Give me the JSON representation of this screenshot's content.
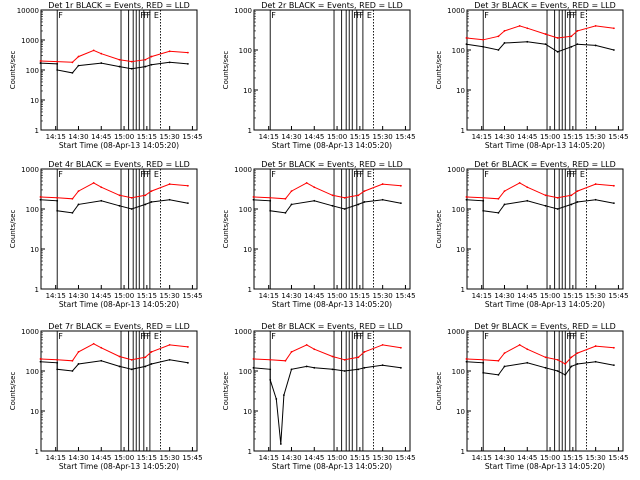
{
  "figure": {
    "background": "#ffffff",
    "axis_color": "#000000",
    "events_color": "#000000",
    "lld_color": "#ff0000"
  },
  "chart_data": [
    {
      "type": "line",
      "title": "Det 1r BLACK = Events, RED = LLD",
      "xlabel": "Start Time (08-Apr-13 14:05:20)",
      "ylabel": "Counts/sec",
      "x_ticks": [
        "14:15",
        "14:30",
        "14:45",
        "15:00",
        "15:15",
        "15:30",
        "15:45"
      ],
      "y_ticks": [
        "1",
        "10",
        "100",
        "1000",
        "10000"
      ],
      "ylim": [
        1,
        10000
      ],
      "y_scale": "log",
      "annotations": [
        "F",
        "F",
        "F",
        "F",
        "E"
      ],
      "series": [
        {
          "name": "BLACK = Events",
          "x": [
            "14:05",
            "14:16",
            "14:16",
            "14:26",
            "14:30",
            "14:45",
            "14:57",
            "15:05",
            "15:14",
            "15:18",
            "15:30",
            "15:42"
          ],
          "y": [
            170,
            160,
            100,
            80,
            140,
            170,
            130,
            110,
            130,
            150,
            180,
            160
          ]
        },
        {
          "name": "RED = LLD",
          "x": [
            "14:05",
            "14:16",
            "14:26",
            "14:30",
            "14:40",
            "14:45",
            "14:57",
            "15:05",
            "15:14",
            "15:18",
            "15:30",
            "15:42"
          ],
          "y": [
            200,
            190,
            180,
            280,
            450,
            350,
            220,
            190,
            220,
            280,
            420,
            380
          ]
        }
      ]
    },
    {
      "type": "line",
      "title": "Det 2r BLACK = Events, RED = LLD",
      "xlabel": "Start Time (08-Apr-13 14:05:20)",
      "ylabel": "Counts/sec",
      "x_ticks": [
        "14:15",
        "14:30",
        "14:45",
        "15:00",
        "15:15",
        "15:30",
        "15:45"
      ],
      "y_ticks": [
        "1",
        "10",
        "100",
        "1000"
      ],
      "ylim": [
        1,
        1000
      ],
      "y_scale": "log",
      "annotations": [
        "F",
        "F",
        "F",
        "F",
        "E"
      ],
      "series": []
    },
    {
      "type": "line",
      "title": "Det 3r BLACK = Events, RED = LLD",
      "xlabel": "Start Time (08-Apr-13 14:05:20)",
      "ylabel": "Counts/sec",
      "x_ticks": [
        "14:15",
        "14:30",
        "14:45",
        "15:00",
        "15:15",
        "15:30",
        "15:45"
      ],
      "y_ticks": [
        "1",
        "10",
        "100",
        "1000"
      ],
      "ylim": [
        1,
        1000
      ],
      "y_scale": "log",
      "annotations": [
        "F",
        "F",
        "F",
        "F",
        "E"
      ],
      "series": [
        {
          "name": "BLACK = Events",
          "x": [
            "14:05",
            "14:16",
            "14:26",
            "14:30",
            "14:45",
            "14:57",
            "15:05",
            "15:14",
            "15:18",
            "15:30",
            "15:42"
          ],
          "y": [
            140,
            120,
            100,
            150,
            160,
            140,
            90,
            120,
            140,
            130,
            100
          ]
        },
        {
          "name": "RED = LLD",
          "x": [
            "14:05",
            "14:16",
            "14:26",
            "14:30",
            "14:40",
            "14:45",
            "14:57",
            "15:05",
            "15:14",
            "15:18",
            "15:30",
            "15:42"
          ],
          "y": [
            200,
            180,
            220,
            300,
            400,
            350,
            250,
            200,
            220,
            300,
            400,
            350
          ]
        }
      ]
    },
    {
      "type": "line",
      "title": "Det 4r BLACK = Events, RED = LLD",
      "xlabel": "Start Time (08-Apr-13 14:05:20)",
      "ylabel": "Counts/sec",
      "x_ticks": [
        "14:15",
        "14:30",
        "14:45",
        "15:00",
        "15:15",
        "15:30",
        "15:45"
      ],
      "y_ticks": [
        "1",
        "10",
        "100",
        "1000"
      ],
      "ylim": [
        1,
        1000
      ],
      "y_scale": "log",
      "annotations": [
        "F",
        "F",
        "F",
        "F",
        "E"
      ],
      "series": [
        {
          "name": "BLACK = Events",
          "x": [
            "14:05",
            "14:16",
            "14:16",
            "14:26",
            "14:30",
            "14:45",
            "14:57",
            "15:05",
            "15:14",
            "15:18",
            "15:30",
            "15:42"
          ],
          "y": [
            170,
            160,
            90,
            80,
            130,
            160,
            120,
            100,
            130,
            150,
            170,
            140
          ]
        },
        {
          "name": "RED = LLD",
          "x": [
            "14:05",
            "14:16",
            "14:26",
            "14:30",
            "14:40",
            "14:45",
            "14:57",
            "15:05",
            "15:14",
            "15:18",
            "15:30",
            "15:42"
          ],
          "y": [
            200,
            190,
            180,
            280,
            450,
            350,
            220,
            190,
            220,
            280,
            420,
            380
          ]
        }
      ]
    },
    {
      "type": "line",
      "title": "Det 5r BLACK = Events, RED = LLD",
      "xlabel": "Start Time (08-Apr-13 14:05:20)",
      "ylabel": "Counts/sec",
      "x_ticks": [
        "14:15",
        "14:30",
        "14:45",
        "15:00",
        "15:15",
        "15:30",
        "15:45"
      ],
      "y_ticks": [
        "1",
        "10",
        "100",
        "1000"
      ],
      "ylim": [
        1,
        1000
      ],
      "y_scale": "log",
      "annotations": [
        "F",
        "F",
        "F",
        "F",
        "E"
      ],
      "series": [
        {
          "name": "BLACK = Events",
          "x": [
            "14:05",
            "14:16",
            "14:16",
            "14:26",
            "14:30",
            "14:45",
            "14:57",
            "15:05",
            "15:14",
            "15:18",
            "15:30",
            "15:42"
          ],
          "y": [
            170,
            160,
            90,
            80,
            130,
            160,
            120,
            100,
            130,
            150,
            170,
            140
          ]
        },
        {
          "name": "RED = LLD",
          "x": [
            "14:05",
            "14:16",
            "14:26",
            "14:30",
            "14:40",
            "14:45",
            "14:57",
            "15:05",
            "15:14",
            "15:18",
            "15:30",
            "15:42"
          ],
          "y": [
            200,
            190,
            180,
            280,
            450,
            350,
            220,
            190,
            220,
            280,
            420,
            380
          ]
        }
      ]
    },
    {
      "type": "line",
      "title": "Det 6r BLACK = Events, RED = LLD",
      "xlabel": "Start Time (08-Apr-13 14:05:20)",
      "ylabel": "Counts/sec",
      "x_ticks": [
        "14:15",
        "14:30",
        "14:45",
        "15:00",
        "15:15",
        "15:30",
        "15:45"
      ],
      "y_ticks": [
        "1",
        "10",
        "100",
        "1000"
      ],
      "ylim": [
        1,
        1000
      ],
      "y_scale": "log",
      "annotations": [
        "F",
        "F",
        "F",
        "F",
        "E"
      ],
      "series": [
        {
          "name": "BLACK = Events",
          "x": [
            "14:05",
            "14:16",
            "14:16",
            "14:26",
            "14:30",
            "14:45",
            "14:57",
            "15:05",
            "15:14",
            "15:18",
            "15:30",
            "15:42"
          ],
          "y": [
            170,
            160,
            90,
            80,
            130,
            160,
            120,
            100,
            130,
            150,
            170,
            140
          ]
        },
        {
          "name": "RED = LLD",
          "x": [
            "14:05",
            "14:16",
            "14:26",
            "14:30",
            "14:40",
            "14:45",
            "14:57",
            "15:05",
            "15:14",
            "15:18",
            "15:30",
            "15:42"
          ],
          "y": [
            200,
            190,
            180,
            280,
            450,
            350,
            220,
            190,
            220,
            280,
            420,
            380
          ]
        }
      ]
    },
    {
      "type": "line",
      "title": "Det 7r BLACK = Events, RED = LLD",
      "xlabel": "Start Time (08-Apr-13 14:05:20)",
      "ylabel": "Counts/sec",
      "x_ticks": [
        "14:15",
        "14:30",
        "14:45",
        "15:00",
        "15:15",
        "15:30",
        "15:45"
      ],
      "y_ticks": [
        "1",
        "10",
        "100",
        "1000"
      ],
      "ylim": [
        1,
        1000
      ],
      "y_scale": "log",
      "annotations": [
        "F",
        "F",
        "F",
        "F",
        "E"
      ],
      "series": [
        {
          "name": "BLACK = Events",
          "x": [
            "14:05",
            "14:16",
            "14:16",
            "14:26",
            "14:30",
            "14:45",
            "14:57",
            "15:05",
            "15:14",
            "15:18",
            "15:30",
            "15:42"
          ],
          "y": [
            170,
            160,
            110,
            100,
            150,
            180,
            130,
            110,
            130,
            150,
            190,
            160
          ]
        },
        {
          "name": "RED = LLD",
          "x": [
            "14:05",
            "14:16",
            "14:26",
            "14:30",
            "14:40",
            "14:45",
            "14:57",
            "15:05",
            "15:14",
            "15:18",
            "15:30",
            "15:42"
          ],
          "y": [
            200,
            190,
            180,
            300,
            480,
            380,
            230,
            190,
            220,
            300,
            450,
            400
          ]
        }
      ]
    },
    {
      "type": "line",
      "title": "Det 8r BLACK = Events, RED = LLD",
      "xlabel": "Start Time (08-Apr-13 14:05:20)",
      "ylabel": "Counts/sec",
      "x_ticks": [
        "14:15",
        "14:30",
        "14:45",
        "15:00",
        "15:15",
        "15:30",
        "15:45"
      ],
      "y_ticks": [
        "1",
        "10",
        "100",
        "1000"
      ],
      "ylim": [
        1,
        1000
      ],
      "y_scale": "log",
      "annotations": [
        "F",
        "F",
        "F",
        "F",
        "E"
      ],
      "series": [
        {
          "name": "BLACK = Events",
          "x": [
            "14:05",
            "14:16",
            "14:16",
            "14:20",
            "14:23",
            "14:25",
            "14:30",
            "14:40",
            "14:45",
            "14:57",
            "15:05",
            "15:14",
            "15:18",
            "15:30",
            "15:42"
          ],
          "y": [
            120,
            110,
            60,
            20,
            1.5,
            25,
            110,
            130,
            120,
            110,
            100,
            110,
            120,
            140,
            120
          ]
        },
        {
          "name": "RED = LLD",
          "x": [
            "14:05",
            "14:16",
            "14:26",
            "14:30",
            "14:40",
            "14:45",
            "14:57",
            "15:05",
            "15:14",
            "15:18",
            "15:30",
            "15:42"
          ],
          "y": [
            200,
            190,
            180,
            300,
            450,
            350,
            230,
            190,
            220,
            300,
            450,
            380
          ]
        }
      ]
    },
    {
      "type": "line",
      "title": "Det 9r BLACK = Events, RED = LLD",
      "xlabel": "Start Time (08-Apr-13 14:05:20)",
      "ylabel": "Counts/sec",
      "x_ticks": [
        "14:15",
        "14:30",
        "14:45",
        "15:00",
        "15:15",
        "15:30",
        "15:45"
      ],
      "y_ticks": [
        "1",
        "10",
        "100",
        "1000"
      ],
      "ylim": [
        1,
        1000
      ],
      "y_scale": "log",
      "annotations": [
        "F",
        "F",
        "F",
        "F",
        "E"
      ],
      "series": [
        {
          "name": "BLACK = Events",
          "x": [
            "14:05",
            "14:16",
            "14:16",
            "14:26",
            "14:30",
            "14:45",
            "14:57",
            "15:05",
            "15:10",
            "15:14",
            "15:18",
            "15:30",
            "15:42"
          ],
          "y": [
            170,
            160,
            90,
            80,
            130,
            160,
            120,
            100,
            80,
            130,
            150,
            170,
            140
          ]
        },
        {
          "name": "RED = LLD",
          "x": [
            "14:05",
            "14:16",
            "14:26",
            "14:30",
            "14:40",
            "14:45",
            "14:57",
            "15:05",
            "15:10",
            "15:14",
            "15:18",
            "15:30",
            "15:42"
          ],
          "y": [
            200,
            190,
            180,
            280,
            450,
            350,
            220,
            190,
            150,
            220,
            280,
            420,
            380
          ]
        }
      ]
    }
  ]
}
